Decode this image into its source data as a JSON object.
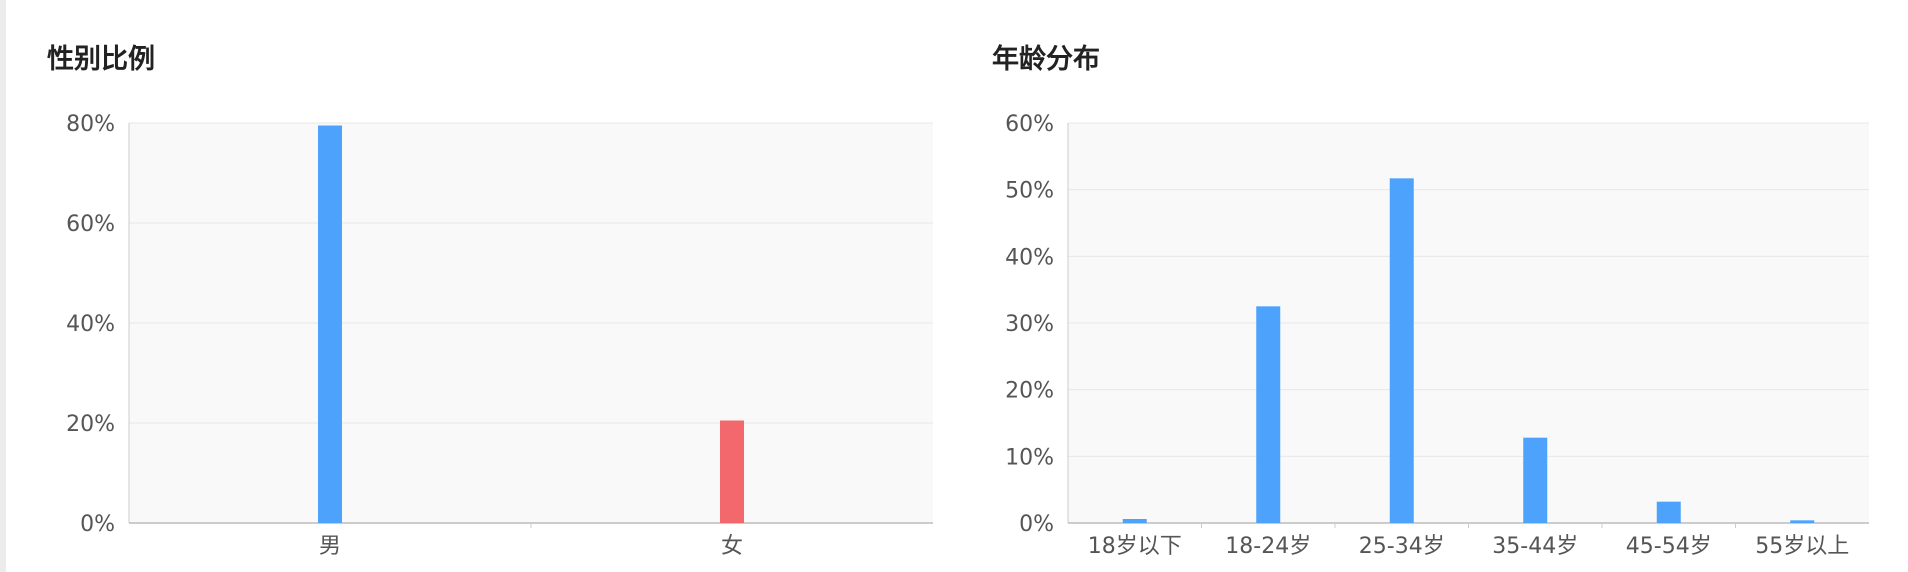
{
  "colors": {
    "bar": "#4da3fb",
    "bar_female": "#f3686c",
    "plot_bg": "#f9f9f9",
    "grid": "#e8e8e8",
    "axis": "#cccccc"
  },
  "charts": {
    "gender": {
      "title": "性别比例"
    },
    "age": {
      "title": "年龄分布"
    }
  },
  "chart_data": [
    {
      "type": "bar",
      "title": "性别比例",
      "categories": [
        "男",
        "女"
      ],
      "values": [
        79.5,
        20.5
      ],
      "bar_colors": [
        "#4da3fb",
        "#f3686c"
      ],
      "ylim": [
        0,
        80
      ],
      "yticks": [
        "0%",
        "20%",
        "40%",
        "60%",
        "80%"
      ],
      "ytick_values": [
        0,
        20,
        40,
        60,
        80
      ],
      "unit": "%",
      "grid": true
    },
    {
      "type": "bar",
      "title": "年龄分布",
      "categories": [
        "18岁以下",
        "18-24岁",
        "25-34岁",
        "35-44岁",
        "45-54岁",
        "55岁以上"
      ],
      "values": [
        0.6,
        32.5,
        51.7,
        12.8,
        3.2,
        0.4
      ],
      "bar_colors": [
        "#4da3fb",
        "#4da3fb",
        "#4da3fb",
        "#4da3fb",
        "#4da3fb",
        "#4da3fb"
      ],
      "ylim": [
        0,
        60
      ],
      "yticks": [
        "0%",
        "10%",
        "20%",
        "30%",
        "40%",
        "50%",
        "60%"
      ],
      "ytick_values": [
        0,
        10,
        20,
        30,
        40,
        50,
        60
      ],
      "unit": "%",
      "grid": true
    }
  ]
}
